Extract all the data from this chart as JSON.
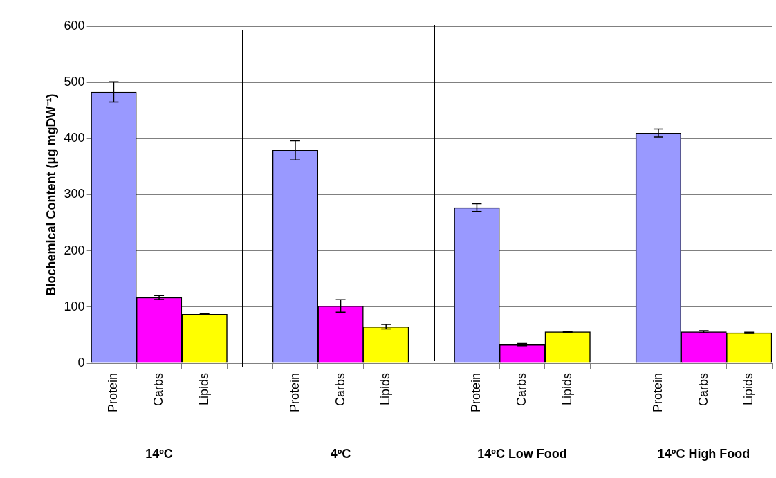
{
  "chart_data": {
    "type": "bar",
    "ylabel": "Biochemical Content (μg mgDW⁻¹)",
    "categories": [
      "Protein",
      "Carbs",
      "Lipids",
      null,
      "Protein",
      "Carbs",
      "Lipids",
      null,
      "Protein",
      "Carbs",
      "Lipids",
      null,
      "Protein",
      "Carbs",
      "Lipids"
    ],
    "values": [
      483,
      117,
      87,
      null,
      379,
      102,
      65,
      null,
      277,
      33,
      56,
      null,
      410,
      56,
      54
    ],
    "colors": [
      "#9999ff",
      "#ff00ff",
      "#ffff00",
      "#ffffff",
      "#9999ff",
      "#ff00ff",
      "#ffff00",
      "#ffffff",
      "#9999ff",
      "#ff00ff",
      "#ffff00",
      "#ffffff",
      "#9999ff",
      "#ff00ff",
      "#ffff00"
    ],
    "errors": [
      18,
      3.5,
      1,
      null,
      17,
      11,
      4,
      null,
      7,
      2,
      1,
      null,
      7,
      2,
      1
    ],
    "ylim": [
      0,
      600
    ],
    "yticks": [
      0,
      100,
      200,
      300,
      400,
      500,
      600
    ],
    "grid": "y",
    "legend": false,
    "annotations": [
      "14ºC",
      "4ºC",
      "14ºC Low Food",
      "14ºC High Food"
    ]
  }
}
